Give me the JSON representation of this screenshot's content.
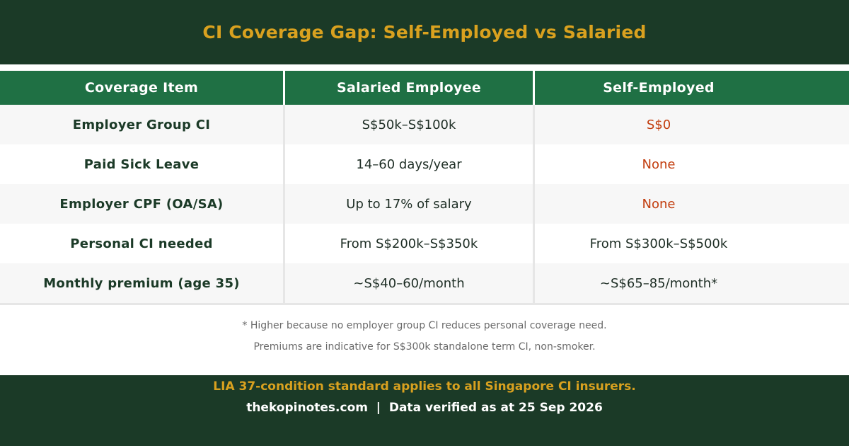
{
  "header": {
    "title": "CI Coverage Gap: Self-Employed vs Salaried"
  },
  "table": {
    "columns": [
      "Coverage Item",
      "Salaried Employee",
      "Self-Employed"
    ],
    "rows": [
      {
        "item": "Employer Group CI",
        "salaried": "S$50k–S$100k",
        "self_employed": "S$0"
      },
      {
        "item": "Paid Sick Leave",
        "salaried": "14–60 days/year",
        "self_employed": "None"
      },
      {
        "item": "Employer CPF (OA/SA)",
        "salaried": "Up to 17% of salary",
        "self_employed": "None"
      },
      {
        "item": "Personal CI needed",
        "salaried": "From S$200k–S$350k",
        "self_employed": "From S$300k–S$500k"
      },
      {
        "item": "Monthly premium (age 35)",
        "salaried": "~S$40–60/month",
        "self_employed": "~S$65–85/month*"
      }
    ]
  },
  "notes": [
    "* Higher because no employer group CI reduces personal coverage need.",
    "Premiums are indicative for S$300k standalone term CI, non-smoker."
  ],
  "footer": {
    "standard_note": "LIA 37-condition standard applies to all Singapore CI insurers.",
    "source_line": "thekopinotes.com  |  Data verified as at 25 Sep 2026"
  },
  "colors": {
    "header_bg": "#1b3a27",
    "table_header_bg": "#1f7044",
    "accent_gold": "#d9a11f",
    "warning_red": "#c23d0e"
  }
}
